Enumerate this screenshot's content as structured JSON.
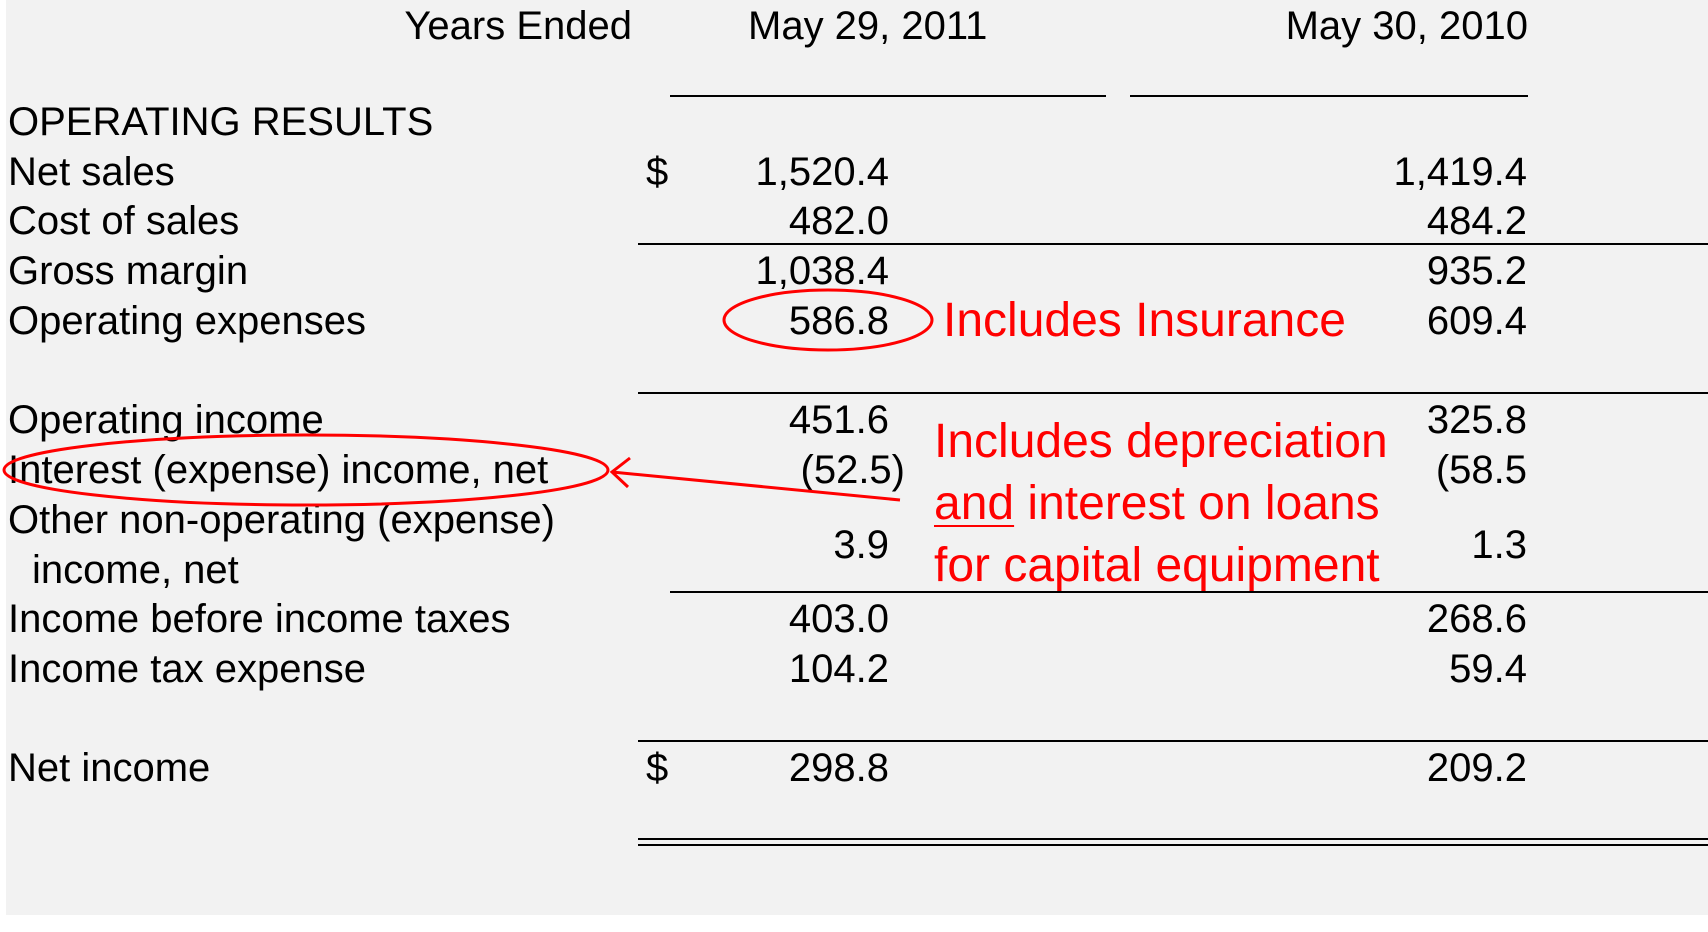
{
  "header": {
    "period_label": "Years Ended",
    "col1": "May 29, 2011",
    "col2": "May 30, 2010"
  },
  "section_title": "OPERATING RESULTS",
  "currency_symbol": "$",
  "rows": [
    {
      "label": "Net sales",
      "v2011": "1,520.4",
      "v2010": "1,419.4"
    },
    {
      "label": "Cost of sales",
      "v2011": "482.0",
      "v2010": "484.2"
    },
    {
      "label": "Gross margin",
      "v2011": "1,038.4",
      "v2010": "935.2"
    },
    {
      "label": "Operating expenses",
      "v2011": "586.8",
      "v2010": "609.4"
    },
    {
      "label": "Operating income",
      "v2011": "451.6",
      "v2010": "325.8"
    },
    {
      "label": "Interest (expense) income, net",
      "v2011": "(52.5)",
      "v2010": "(58.5"
    },
    {
      "label": "Other non-operating (expense)",
      "label2": "income, net",
      "v2011": "3.9",
      "v2010": "1.3"
    },
    {
      "label": "Income before income taxes",
      "v2011": "403.0",
      "v2010": "268.6"
    },
    {
      "label": "Income tax expense",
      "v2011": "104.2",
      "v2010": "59.4"
    },
    {
      "label": "Net income",
      "v2011": "298.8",
      "v2010": "209.2"
    }
  ],
  "annotations": {
    "insurance": "Includes Insurance",
    "depr_line1": "Includes depreciation",
    "depr_line2_underlined": "and",
    "depr_line2_rest": " interest on loans",
    "depr_line3": "for capital equipment"
  },
  "colors": {
    "annotation": "#ff0000",
    "panel_bg": "#f2f2f2"
  }
}
